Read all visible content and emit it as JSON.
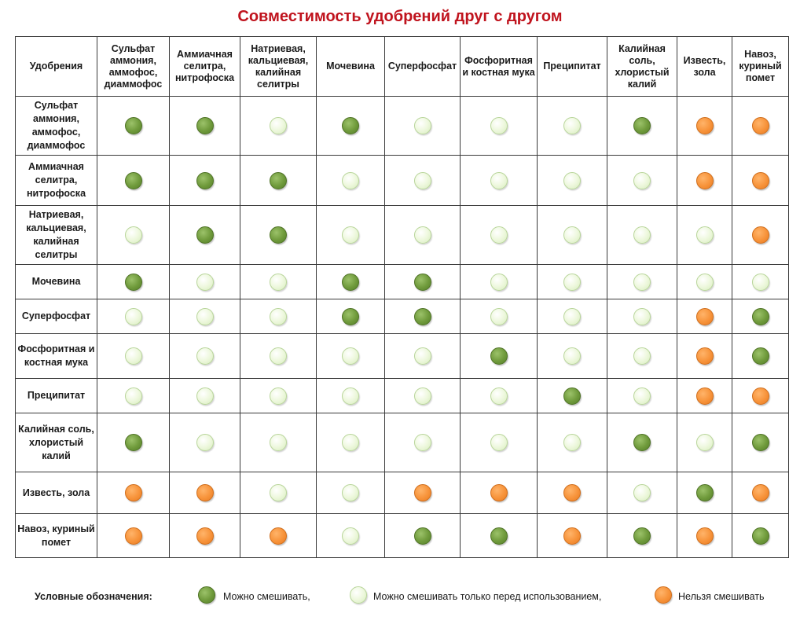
{
  "chart_data": {
    "type": "table",
    "title": "Совместимость удобрений друг с другом",
    "corner_label": "Удобрения",
    "columns": [
      "Сульфат аммония, аммофос, диаммофос",
      "Аммиачная селитра, нитрофоска",
      "Натриевая, кальциевая, калийная селитры",
      "Мочевина",
      "Суперфосфат",
      "Фосфоритная и костная мука",
      "Преципитат",
      "Калийная соль, хлористый калий",
      "Известь, зола",
      "Навоз, куриный помет"
    ],
    "rows": [
      {
        "label": "Сульфат аммония, аммофос, диаммофос",
        "cells": [
          "g",
          "g",
          "l",
          "g",
          "l",
          "l",
          "l",
          "g",
          "o",
          "o"
        ]
      },
      {
        "label": "Аммиачная селитра, нитрофоска",
        "cells": [
          "g",
          "g",
          "g",
          "l",
          "l",
          "l",
          "l",
          "l",
          "o",
          "o"
        ]
      },
      {
        "label": "Натриевая, кальциевая, калийная селитры",
        "cells": [
          "l",
          "g",
          "g",
          "l",
          "l",
          "l",
          "l",
          "l",
          "l",
          "o"
        ]
      },
      {
        "label": "Мочевина",
        "cells": [
          "g",
          "l",
          "l",
          "g",
          "g",
          "l",
          "l",
          "l",
          "l",
          "l"
        ]
      },
      {
        "label": "Суперфосфат",
        "cells": [
          "l",
          "l",
          "l",
          "g",
          "g",
          "l",
          "l",
          "l",
          "o",
          "g"
        ]
      },
      {
        "label": "Фосфоритная и костная мука",
        "cells": [
          "l",
          "l",
          "l",
          "l",
          "l",
          "g",
          "l",
          "l",
          "o",
          "g"
        ]
      },
      {
        "label": "Преципитат",
        "cells": [
          "l",
          "l",
          "l",
          "l",
          "l",
          "l",
          "g",
          "l",
          "o",
          "o"
        ]
      },
      {
        "label": "Калийная соль, хлористый калий",
        "cells": [
          "g",
          "l",
          "l",
          "l",
          "l",
          "l",
          "l",
          "g",
          "l",
          "g"
        ]
      },
      {
        "label": "Известь, зола",
        "cells": [
          "o",
          "o",
          "l",
          "l",
          "o",
          "o",
          "o",
          "l",
          "g",
          "o"
        ]
      },
      {
        "label": "Навоз, куриный помет",
        "cells": [
          "o",
          "o",
          "o",
          "l",
          "g",
          "g",
          "o",
          "g",
          "o",
          "g"
        ]
      }
    ],
    "legend": {
      "label": "Условные обозначения:",
      "items": [
        {
          "code": "g",
          "text": "Можно смешивать,",
          "color": "#6f9a3b"
        },
        {
          "code": "l",
          "text": "Можно смешивать только перед использованием,",
          "color": "#e4f3cf"
        },
        {
          "code": "o",
          "text": "Нельзя смешивать",
          "color": "#f7933a"
        }
      ]
    }
  }
}
